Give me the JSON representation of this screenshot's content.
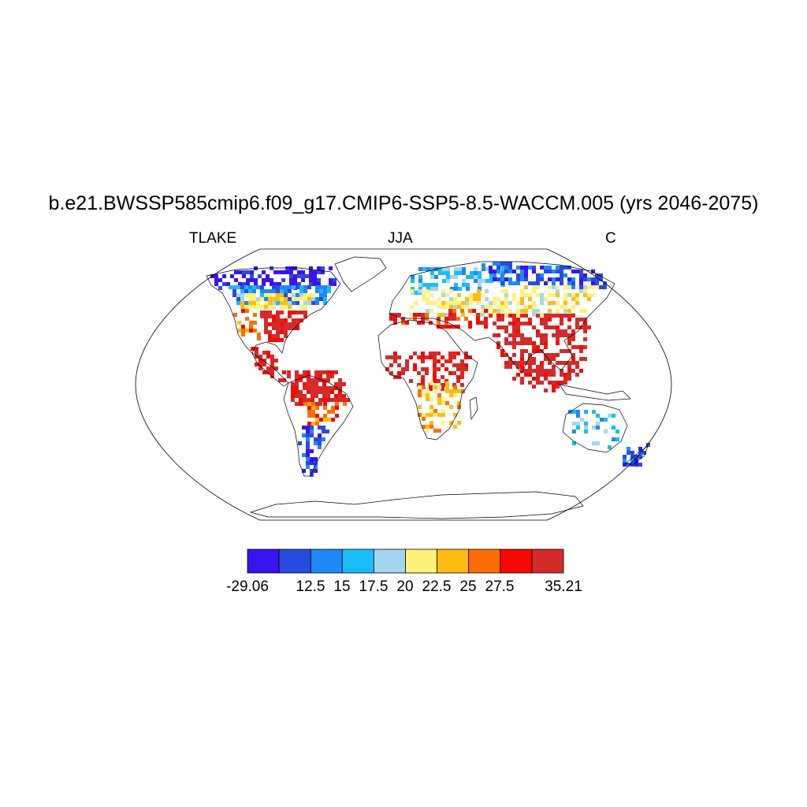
{
  "title": "b.e21.BWSSP585cmip6.f09_g17.CMIP6-SSP5-8.5-WACCM.005 (yrs 2046-2075)",
  "left_string": "TLAKE",
  "center_string": "JJA",
  "right_string": "C",
  "colorbar": {
    "colors": [
      "#3a14f0",
      "#2a4be0",
      "#1e88f5",
      "#18bdf5",
      "#a4d6f0",
      "#fff27a",
      "#ffbc14",
      "#ff6e05",
      "#f50a05",
      "#d42a2a"
    ],
    "labels": [
      "-29.06",
      "12.5",
      "15",
      "17.5",
      "20",
      "22.5",
      "25",
      "27.5",
      "35.21"
    ]
  },
  "map": {
    "projection": "Robinson",
    "regions": [
      {
        "name": "Arctic Canada / Alaska",
        "level": 1
      },
      {
        "name": "Central Canada",
        "level": 3
      },
      {
        "name": "Southern Canada",
        "level": 6
      },
      {
        "name": "Eastern US",
        "level": 10
      },
      {
        "name": "Western US",
        "level": 8
      },
      {
        "name": "Central America",
        "level": 10
      },
      {
        "name": "Amazon",
        "level": 10
      },
      {
        "name": "Southern Brazil",
        "level": 8
      },
      {
        "name": "Patagonia",
        "level": 2
      },
      {
        "name": "Scandinavia / Northern Russia",
        "level": 4
      },
      {
        "name": "Siberia",
        "level": 2
      },
      {
        "name": "Europe / Central Asia",
        "level": 6
      },
      {
        "name": "Mediterranean",
        "level": 9
      },
      {
        "name": "India / Southeast Asia",
        "level": 10
      },
      {
        "name": "Sahel / East Africa",
        "level": 10
      },
      {
        "name": "Southern Africa",
        "level": 7
      },
      {
        "name": "Australia",
        "level": 4
      },
      {
        "name": "New Zealand",
        "level": 2
      }
    ]
  }
}
